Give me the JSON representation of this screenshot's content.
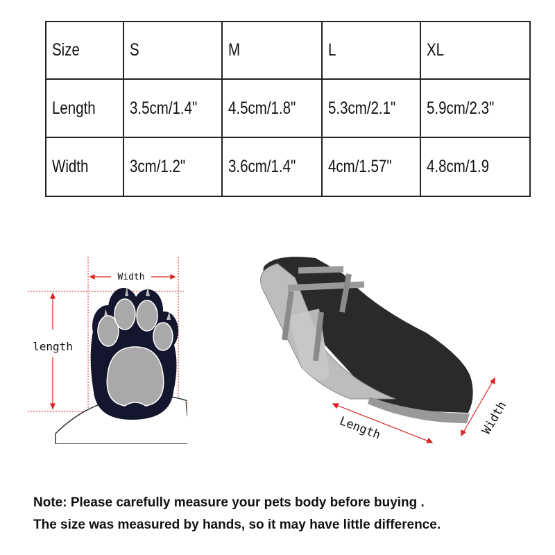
{
  "size_table": {
    "header": [
      "Size",
      "S",
      "M",
      "L",
      "XL"
    ],
    "rows": [
      [
        "Length",
        "3.5cm/1.4\"",
        "4.5cm/1.8\"",
        "5.3cm/2.1\"",
        "5.9cm/2.3\""
      ],
      [
        "Width",
        "3cm/1.2\"",
        "3.6cm/1.4\"",
        "4cm/1.57\"",
        "4.8cm/1.9"
      ]
    ]
  },
  "paw_diagram": {
    "width_label": "Width",
    "length_label": "length",
    "guide_color": "#d22"
  },
  "boot_diagram": {
    "length_label": "Length",
    "width_label": "Width",
    "arrow_color": "#d22"
  },
  "note": {
    "line1": "Note: Please carefully measure your pets body before buying .",
    "line2": "The size was measured by hands, so it may have little difference."
  }
}
